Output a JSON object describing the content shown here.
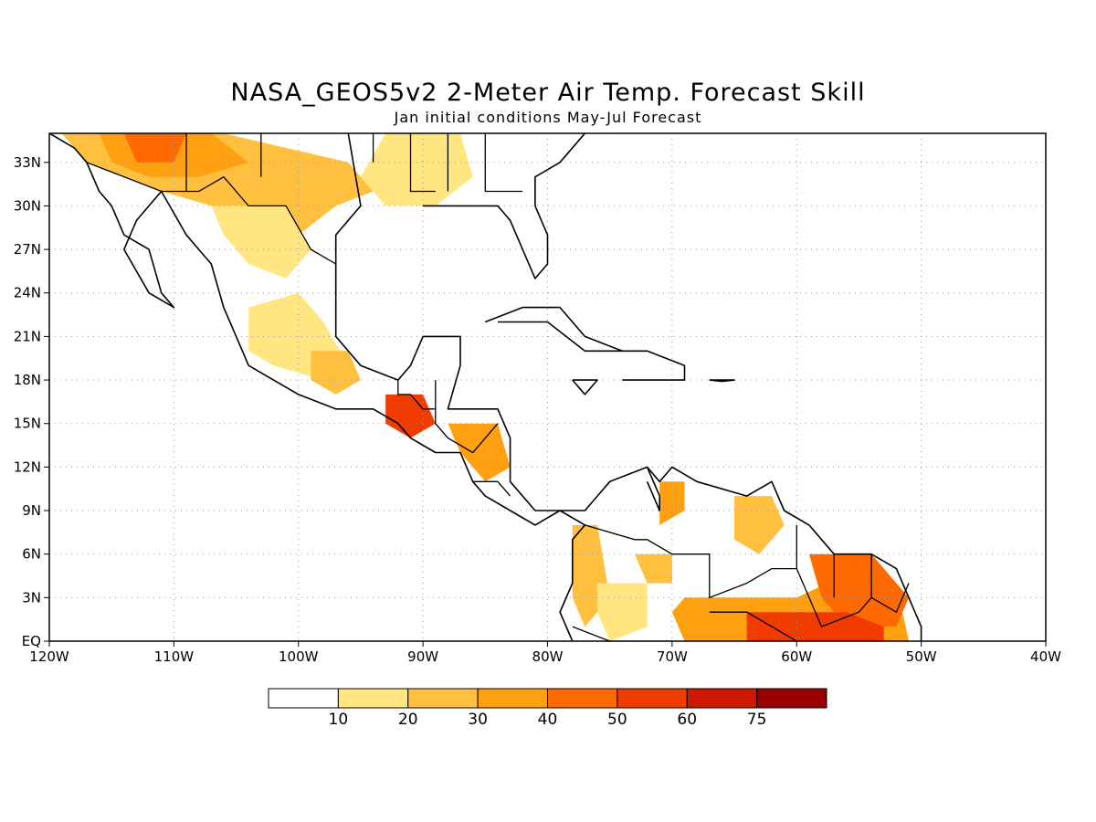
{
  "header": {
    "title": "NASA_GEOS5v2 2-Meter Air Temp. Forecast Skill",
    "subtitle": "Jan initial conditions  May-Jul Forecast"
  },
  "map": {
    "lon_range": [
      -120,
      -40
    ],
    "lat_range": [
      0,
      35
    ],
    "lon_ticks": [
      {
        "value": -120,
        "label": "120W"
      },
      {
        "value": -110,
        "label": "110W"
      },
      {
        "value": -100,
        "label": "100W"
      },
      {
        "value": -90,
        "label": "90W"
      },
      {
        "value": -80,
        "label": "80W"
      },
      {
        "value": -70,
        "label": "70W"
      },
      {
        "value": -60,
        "label": "60W"
      },
      {
        "value": -50,
        "label": "50W"
      },
      {
        "value": -40,
        "label": "40W"
      }
    ],
    "lat_ticks": [
      {
        "value": 0,
        "label": "EQ"
      },
      {
        "value": 3,
        "label": "3N"
      },
      {
        "value": 6,
        "label": "6N"
      },
      {
        "value": 9,
        "label": "9N"
      },
      {
        "value": 12,
        "label": "12N"
      },
      {
        "value": 15,
        "label": "15N"
      },
      {
        "value": 18,
        "label": "18N"
      },
      {
        "value": 21,
        "label": "21N"
      },
      {
        "value": 24,
        "label": "24N"
      },
      {
        "value": 27,
        "label": "27N"
      },
      {
        "value": 30,
        "label": "30N"
      },
      {
        "value": 33,
        "label": "33N"
      }
    ],
    "grid": true
  },
  "colorbar": {
    "labels": [
      "10",
      "20",
      "30",
      "40",
      "50",
      "60",
      "75"
    ],
    "colors": [
      "#ffffff",
      "#ffe680",
      "#ffc040",
      "#ffa010",
      "#ff6a00",
      "#f03c00",
      "#d01800",
      "#9a0000"
    ]
  },
  "skill_regions": [
    {
      "name": "sw-us",
      "level": 2,
      "points": [
        [
          -119,
          35
        ],
        [
          -106,
          35
        ],
        [
          -101,
          34
        ],
        [
          -96,
          33
        ],
        [
          -94,
          31
        ],
        [
          -97,
          30
        ],
        [
          -100,
          28
        ],
        [
          -104,
          29
        ],
        [
          -107,
          30
        ],
        [
          -111,
          31
        ],
        [
          -114,
          32
        ],
        [
          -117,
          33
        ]
      ]
    },
    {
      "name": "sw-us-core",
      "level": 3,
      "points": [
        [
          -116,
          35
        ],
        [
          -107,
          35
        ],
        [
          -104,
          33
        ],
        [
          -108,
          32
        ],
        [
          -112,
          32
        ],
        [
          -115,
          33
        ]
      ]
    },
    {
      "name": "az-hot",
      "level": 4,
      "points": [
        [
          -114,
          35
        ],
        [
          -109,
          35
        ],
        [
          -110,
          33
        ],
        [
          -113,
          33
        ]
      ]
    },
    {
      "name": "gulf-coast-us",
      "level": 1,
      "points": [
        [
          -93,
          35
        ],
        [
          -87,
          35
        ],
        [
          -86,
          32
        ],
        [
          -89,
          30
        ],
        [
          -93,
          30
        ],
        [
          -95,
          32
        ]
      ]
    },
    {
      "name": "mexico-north",
      "level": 1,
      "points": [
        [
          -107,
          30
        ],
        [
          -101,
          30
        ],
        [
          -99,
          27
        ],
        [
          -101,
          25
        ],
        [
          -104,
          26
        ],
        [
          -106,
          28
        ]
      ]
    },
    {
      "name": "mexico-central",
      "level": 1,
      "points": [
        [
          -104,
          23
        ],
        [
          -100,
          24
        ],
        [
          -98,
          22
        ],
        [
          -96,
          19
        ],
        [
          -98,
          18
        ],
        [
          -102,
          19
        ],
        [
          -104,
          20
        ]
      ]
    },
    {
      "name": "mexico-south",
      "level": 2,
      "points": [
        [
          -99,
          20
        ],
        [
          -96,
          20
        ],
        [
          -95,
          18
        ],
        [
          -97,
          17
        ],
        [
          -99,
          18
        ]
      ]
    },
    {
      "name": "guatemala",
      "level": 5,
      "points": [
        [
          -93,
          17
        ],
        [
          -90,
          17
        ],
        [
          -89,
          15
        ],
        [
          -91,
          14
        ],
        [
          -93,
          15
        ]
      ]
    },
    {
      "name": "honduras",
      "level": 3,
      "points": [
        [
          -88,
          15
        ],
        [
          -84,
          15
        ],
        [
          -83,
          12
        ],
        [
          -85,
          11
        ],
        [
          -87,
          13
        ]
      ]
    },
    {
      "name": "colombia-west",
      "level": 2,
      "points": [
        [
          -78,
          8
        ],
        [
          -76,
          8
        ],
        [
          -75,
          3
        ],
        [
          -77,
          1
        ],
        [
          -78,
          3
        ]
      ]
    },
    {
      "name": "colombia-central",
      "level": 1,
      "points": [
        [
          -76,
          4
        ],
        [
          -72,
          4
        ],
        [
          -72,
          1
        ],
        [
          -75,
          0
        ],
        [
          -76,
          2
        ]
      ]
    },
    {
      "name": "venezuela-west",
      "level": 3,
      "points": [
        [
          -71,
          11
        ],
        [
          -69,
          11
        ],
        [
          -69,
          9
        ],
        [
          -71,
          8
        ]
      ]
    },
    {
      "name": "venezuela-central",
      "level": 2,
      "points": [
        [
          -73,
          6
        ],
        [
          -70,
          6
        ],
        [
          -70,
          4
        ],
        [
          -72,
          4
        ]
      ]
    },
    {
      "name": "venezuela-east",
      "level": 2,
      "points": [
        [
          -65,
          10
        ],
        [
          -62,
          10
        ],
        [
          -61,
          8
        ],
        [
          -63,
          6
        ],
        [
          -65,
          7
        ]
      ]
    },
    {
      "name": "amazon-north",
      "level": 3,
      "points": [
        [
          -69,
          3
        ],
        [
          -60,
          3
        ],
        [
          -55,
          5
        ],
        [
          -52,
          4
        ],
        [
          -51,
          0
        ],
        [
          -69,
          0
        ],
        [
          -70,
          2
        ]
      ]
    },
    {
      "name": "guianas",
      "level": 4,
      "points": [
        [
          -59,
          6
        ],
        [
          -54,
          6
        ],
        [
          -51,
          3
        ],
        [
          -52,
          1
        ],
        [
          -56,
          1
        ],
        [
          -58,
          3
        ]
      ]
    },
    {
      "name": "amazon-core",
      "level": 5,
      "points": [
        [
          -64,
          2
        ],
        [
          -56,
          2
        ],
        [
          -53,
          1
        ],
        [
          -53,
          0
        ],
        [
          -64,
          0
        ]
      ]
    }
  ],
  "land_outline": [
    [
      [
        -120,
        35
      ],
      [
        -118,
        34
      ],
      [
        -117,
        33
      ],
      [
        -116,
        31
      ],
      [
        -115,
        30
      ],
      [
        -114,
        28
      ],
      [
        -112,
        27
      ],
      [
        -111,
        24
      ],
      [
        -110,
        23
      ],
      [
        -112,
        24
      ],
      [
        -114,
        27
      ],
      [
        -113,
        29
      ],
      [
        -112,
        30
      ],
      [
        -111,
        31
      ],
      [
        -109,
        28
      ],
      [
        -107,
        26
      ],
      [
        -106,
        23
      ],
      [
        -105,
        21
      ],
      [
        -104,
        19
      ],
      [
        -102,
        18
      ],
      [
        -100,
        17
      ],
      [
        -97,
        16
      ],
      [
        -94,
        16
      ],
      [
        -92,
        15
      ],
      [
        -91,
        14
      ],
      [
        -89,
        13
      ],
      [
        -87,
        13
      ],
      [
        -86,
        11
      ],
      [
        -85,
        10
      ],
      [
        -83,
        9
      ],
      [
        -81,
        8
      ],
      [
        -79,
        9
      ],
      [
        -77,
        8
      ],
      [
        -78,
        7
      ],
      [
        -78,
        4
      ],
      [
        -79,
        2
      ],
      [
        -78,
        0
      ]
    ],
    [
      [
        -96,
        35
      ],
      [
        -95,
        30
      ],
      [
        -97,
        28
      ],
      [
        -97,
        26
      ],
      [
        -97,
        23
      ],
      [
        -97,
        21
      ],
      [
        -95,
        19
      ],
      [
        -92,
        18
      ],
      [
        -91,
        19
      ],
      [
        -90,
        21
      ],
      [
        -87,
        21
      ],
      [
        -87,
        19
      ],
      [
        -88,
        16
      ],
      [
        -84,
        16
      ],
      [
        -83,
        14
      ],
      [
        -83,
        11
      ],
      [
        -81,
        9
      ],
      [
        -80,
        9
      ],
      [
        -77,
        9
      ],
      [
        -76,
        10
      ],
      [
        -75,
        11
      ],
      [
        -72,
        12
      ],
      [
        -71,
        11
      ],
      [
        -70,
        12
      ],
      [
        -68,
        11
      ],
      [
        -64,
        10
      ],
      [
        -62,
        11
      ],
      [
        -61,
        9
      ],
      [
        -59,
        8
      ],
      [
        -57,
        6
      ],
      [
        -54,
        6
      ],
      [
        -52,
        5
      ],
      [
        -51,
        3
      ],
      [
        -50,
        1
      ],
      [
        -50,
        0
      ]
    ],
    [
      [
        -90,
        30
      ],
      [
        -88,
        30
      ],
      [
        -85,
        30
      ],
      [
        -84,
        30
      ],
      [
        -83,
        29
      ],
      [
        -82,
        27
      ],
      [
        -81,
        25
      ],
      [
        -80,
        26
      ],
      [
        -80,
        28
      ],
      [
        -81,
        30
      ],
      [
        -81,
        32
      ],
      [
        -79,
        33
      ],
      [
        -77,
        35
      ]
    ],
    [
      [
        -85,
        22
      ],
      [
        -82,
        23
      ],
      [
        -79,
        23
      ],
      [
        -77,
        21
      ],
      [
        -74,
        20
      ],
      [
        -77,
        20
      ],
      [
        -80,
        22
      ],
      [
        -84,
        22
      ]
    ],
    [
      [
        -74,
        20
      ],
      [
        -72,
        20
      ],
      [
        -69,
        19
      ],
      [
        -69,
        18
      ],
      [
        -72,
        18
      ],
      [
        -74,
        18
      ]
    ],
    [
      [
        -78,
        18
      ],
      [
        -76,
        18
      ],
      [
        -77,
        17
      ],
      [
        -78,
        18
      ]
    ],
    [
      [
        -67,
        18
      ],
      [
        -65,
        18
      ],
      [
        -66,
        17.9
      ],
      [
        -67,
        18
      ]
    ],
    [
      [
        -72,
        12
      ],
      [
        -71,
        10
      ],
      [
        -71,
        9
      ],
      [
        -72,
        11
      ]
    ]
  ],
  "borders": [
    [
      [
        -117,
        33
      ],
      [
        -111,
        31
      ],
      [
        -108,
        31
      ],
      [
        -106,
        32
      ],
      [
        -104,
        30
      ],
      [
        -101,
        30
      ],
      [
        -99,
        27
      ],
      [
        -97,
        26
      ]
    ],
    [
      [
        -92,
        18
      ],
      [
        -92,
        17
      ],
      [
        -91,
        17
      ],
      [
        -90,
        16
      ],
      [
        -89,
        16
      ],
      [
        -89,
        18
      ]
    ],
    [
      [
        -89,
        16
      ],
      [
        -89,
        15
      ],
      [
        -88,
        14
      ],
      [
        -86,
        13
      ],
      [
        -84,
        15
      ]
    ],
    [
      [
        -86,
        11
      ],
      [
        -84,
        11
      ],
      [
        -83,
        10
      ]
    ],
    [
      [
        -77,
        8
      ],
      [
        -73,
        7
      ],
      [
        -72,
        7
      ],
      [
        -70,
        6
      ],
      [
        -67,
        6
      ],
      [
        -67,
        3
      ],
      [
        -64,
        4
      ],
      [
        -62,
        5
      ],
      [
        -60,
        5
      ],
      [
        -60,
        8
      ]
    ],
    [
      [
        -78,
        1
      ],
      [
        -75,
        0
      ],
      [
        -70,
        0
      ]
    ],
    [
      [
        -67,
        2
      ],
      [
        -64,
        2
      ],
      [
        -60,
        0
      ]
    ],
    [
      [
        -60,
        5
      ],
      [
        -59,
        3
      ],
      [
        -58,
        1
      ],
      [
        -55,
        2
      ],
      [
        -54,
        3
      ],
      [
        -52,
        2
      ],
      [
        -51,
        4
      ]
    ],
    [
      [
        -57,
        6
      ],
      [
        -57,
        3
      ]
    ],
    [
      [
        -54,
        6
      ],
      [
        -54,
        3
      ]
    ],
    [
      [
        -109,
        35
      ],
      [
        -109,
        31
      ]
    ],
    [
      [
        -103,
        35
      ],
      [
        -103,
        32
      ]
    ],
    [
      [
        -94,
        35
      ],
      [
        -94,
        33
      ]
    ],
    [
      [
        -91,
        35
      ],
      [
        -91,
        31
      ],
      [
        -89,
        31
      ]
    ],
    [
      [
        -88,
        35
      ],
      [
        -88,
        31
      ]
    ],
    [
      [
        -85,
        35
      ],
      [
        -85,
        31
      ],
      [
        -82,
        31
      ]
    ]
  ]
}
